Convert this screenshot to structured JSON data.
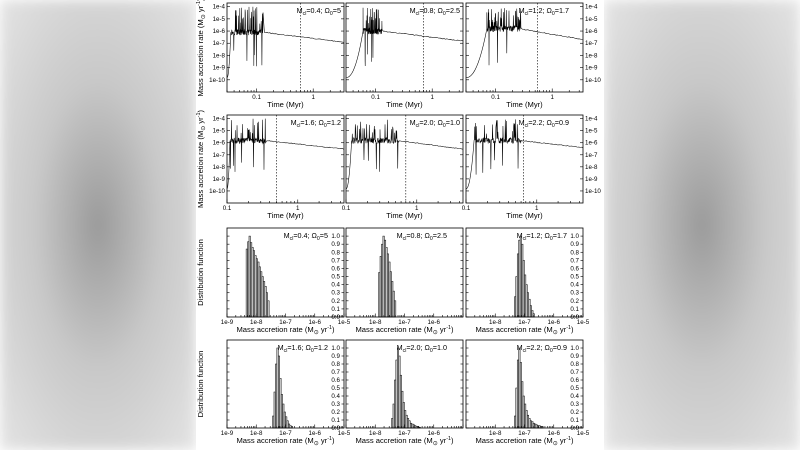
{
  "figure": {
    "colors": {
      "ink": "#000000",
      "bar_fill": "#d6d6d6",
      "background": "#ffffff"
    },
    "time_axis_label": "Time (Myr)",
    "rate_axis_label": "Mass accretion rate (M⊙ yr⁻¹)",
    "dist_axis_label": "Distribution function",
    "panel_labels": [
      "Mcl=0.4; Ω0=5",
      "Mcl=0.8; Ω0=2.5",
      "Mcl=1.2; Ω0=1.7",
      "Mcl=1.6; Ω0=1.2",
      "Mcl=2.0; Ω0=1.0",
      "Mcl=2.2; Ω0=0.9"
    ]
  },
  "chart_data": [
    {
      "type": "line",
      "panel": "time-1",
      "label": "Mcl=0.4; Ω0=5",
      "x_scale": "log",
      "y_scale": "log",
      "xlim": [
        0.03,
        3.5
      ],
      "ylim": [
        1e-11,
        0.0002
      ],
      "x_ticks": [
        "0.1",
        "1"
      ],
      "y_ticks": [
        "1e-4",
        "1e-5",
        "1e-6",
        "1e-7",
        "1e-8",
        "1e-9",
        "1e-10"
      ],
      "xlabel": "Time (Myr)",
      "ylabel": "Mass accretion rate (M⊙ yr⁻¹)",
      "t_form": 0.035,
      "t_burst_end": 0.13,
      "t_marker": 0.6,
      "level_start": 8e-07,
      "level_end": 1.2e-07,
      "burst_max": 0.0001
    },
    {
      "type": "line",
      "panel": "time-2",
      "label": "Mcl=0.8; Ω0=2.5",
      "x_scale": "log",
      "y_scale": "log",
      "xlim": [
        0.03,
        3.5
      ],
      "ylim": [
        1e-11,
        0.0002
      ],
      "x_ticks": [
        "0.1",
        "1"
      ],
      "xlabel": "Time (Myr)",
      "t_form": 0.06,
      "t_burst_end": 0.13,
      "t_marker": 0.7,
      "level_start": 1e-06,
      "level_end": 1.5e-07,
      "burst_max": 0.0001
    },
    {
      "type": "line",
      "panel": "time-3",
      "label": "Mcl=1.2; Ω0=1.7",
      "x_scale": "log",
      "y_scale": "log",
      "xlim": [
        0.03,
        3.5
      ],
      "ylim": [
        1e-11,
        0.0002
      ],
      "x_ticks": [
        "0.1",
        "1"
      ],
      "y_ticks": [
        "1e-4",
        "1e-5",
        "1e-6",
        "1e-7",
        "1e-8",
        "1e-9",
        "1e-10"
      ],
      "xlabel": "Time (Myr)",
      "t_form": 0.07,
      "t_burst_end": 0.28,
      "t_marker": 0.55,
      "level_start": 1.5e-06,
      "level_end": 2e-07,
      "burst_max": 0.0001
    },
    {
      "type": "line",
      "panel": "time-4",
      "label": "Mcl=1.6; Ω0=1.2",
      "x_scale": "log",
      "y_scale": "log",
      "xlim": [
        0.1,
        4.5
      ],
      "ylim": [
        1e-11,
        0.0002
      ],
      "x_ticks": [
        "0.1",
        "1"
      ],
      "y_ticks": [
        "1e-4",
        "1e-5",
        "1e-6",
        "1e-7",
        "1e-8",
        "1e-9",
        "1e-10"
      ],
      "xlabel": "Time (Myr)",
      "ylabel": "Mass accretion rate (M⊙ yr⁻¹)",
      "t_form": 0.11,
      "t_burst_end": 0.35,
      "t_marker": 0.5,
      "level_start": 1.5e-06,
      "level_end": 3e-07,
      "burst_max": 0.0001
    },
    {
      "type": "line",
      "panel": "time-5",
      "label": "Mcl=2.0; Ω0=1.0",
      "x_scale": "log",
      "y_scale": "log",
      "xlim": [
        0.1,
        4.5
      ],
      "ylim": [
        1e-11,
        0.0002
      ],
      "x_ticks": [
        "0.1",
        "1"
      ],
      "xlabel": "Time (Myr)",
      "t_form": 0.12,
      "t_burst_end": 0.55,
      "t_marker": 0.7,
      "level_start": 1.5e-06,
      "level_end": 3e-07,
      "burst_max": 0.0001
    },
    {
      "type": "line",
      "panel": "time-6",
      "label": "Mcl=2.2; Ω0=0.9",
      "x_scale": "log",
      "y_scale": "log",
      "xlim": [
        0.1,
        4.5
      ],
      "ylim": [
        1e-11,
        0.0002
      ],
      "x_ticks": [
        "0.1",
        "1"
      ],
      "y_ticks": [
        "1e-4",
        "1e-5",
        "1e-6",
        "1e-7",
        "1e-8",
        "1e-9",
        "1e-10"
      ],
      "xlabel": "Time (Myr)",
      "t_form": 0.13,
      "t_burst_end": 0.6,
      "t_marker": 0.65,
      "level_start": 1.5e-06,
      "level_end": 4e-07,
      "burst_max": 0.0001
    },
    {
      "type": "bar",
      "panel": "hist-1",
      "label": "Mcl=0.4; Ω0=5",
      "x_scale": "log",
      "xlim": [
        1e-09,
        1e-05
      ],
      "ylim": [
        0,
        1.1
      ],
      "x_ticks": [
        "1e-9",
        "1e-8",
        "1e-7",
        "1e-6",
        "1e-5"
      ],
      "y_ticks": [
        "0.0",
        "0.1",
        "0.2",
        "0.3",
        "0.4",
        "0.5",
        "0.6",
        "0.7",
        "0.8",
        "0.9",
        "1.0"
      ],
      "xlabel": "Mass accretion rate (M⊙ yr⁻¹)",
      "ylabel": "Distribution function",
      "bin_start": 4.5e-09,
      "bin_ratio": 1.12,
      "values": [
        0.84,
        0.93,
        1.0,
        0.92,
        0.86,
        0.82,
        0.76,
        0.72,
        0.68,
        0.62,
        0.56,
        0.5,
        0.44,
        0.38,
        0.3,
        0.2
      ]
    },
    {
      "type": "bar",
      "panel": "hist-2",
      "label": "Mcl=0.8; Ω0=2.5",
      "x_scale": "log",
      "xlim": [
        1e-09,
        1e-05
      ],
      "ylim": [
        0,
        1.1
      ],
      "x_ticks": [
        "1e-8",
        "1e-7",
        "1e-6"
      ],
      "xlabel": "Mass accretion rate (M⊙ yr⁻¹)",
      "bin_start": 1.3e-08,
      "bin_ratio": 1.12,
      "values": [
        0.55,
        0.75,
        0.9,
        1.0,
        0.95,
        0.86,
        0.78,
        0.68,
        0.56,
        0.44,
        0.32,
        0.2
      ]
    },
    {
      "type": "bar",
      "panel": "hist-3",
      "label": "Mcl=1.2; Ω0=1.7",
      "x_scale": "log",
      "xlim": [
        1e-09,
        1e-05
      ],
      "ylim": [
        0,
        1.1
      ],
      "x_ticks": [
        "1e-8",
        "1e-7",
        "1e-6",
        "1e-5"
      ],
      "y_ticks": [
        "0.0",
        "0.1",
        "0.2",
        "0.3",
        "0.4",
        "0.5",
        "0.6",
        "0.7",
        "0.8",
        "0.9",
        "1.0"
      ],
      "xlabel": "Mass accretion rate (M⊙ yr⁻¹)",
      "bin_start": 4.5e-08,
      "bin_ratio": 1.12,
      "values": [
        0.25,
        0.5,
        0.78,
        0.95,
        1.0,
        0.9,
        0.7,
        0.52,
        0.4,
        0.3,
        0.22,
        0.14,
        0.08,
        0.04
      ]
    },
    {
      "type": "bar",
      "panel": "hist-4",
      "label": "Mcl=1.6; Ω0=1.2",
      "x_scale": "log",
      "xlim": [
        1e-09,
        1e-05
      ],
      "ylim": [
        0,
        1.1
      ],
      "x_ticks": [
        "1e-9",
        "1e-8",
        "1e-7",
        "1e-6",
        "1e-5"
      ],
      "y_ticks": [
        "0.0",
        "0.1",
        "0.2",
        "0.3",
        "0.4",
        "0.5",
        "0.6",
        "0.7",
        "0.8",
        "0.9",
        "1.0"
      ],
      "xlabel": "Mass accretion rate (M⊙ yr⁻¹)",
      "ylabel": "Distribution function",
      "bin_start": 3.6e-08,
      "bin_ratio": 1.12,
      "values": [
        0.15,
        0.45,
        0.8,
        1.0,
        0.9,
        0.62,
        0.42,
        0.3,
        0.2,
        0.14,
        0.09,
        0.05,
        0.03,
        0.02
      ]
    },
    {
      "type": "bar",
      "panel": "hist-5",
      "label": "Mcl=2.0; Ω0=1.0",
      "x_scale": "log",
      "xlim": [
        1e-09,
        1e-05
      ],
      "ylim": [
        0,
        1.1
      ],
      "x_ticks": [
        "1e-8",
        "1e-7",
        "1e-6"
      ],
      "xlabel": "Mass accretion rate (M⊙ yr⁻¹)",
      "bin_start": 3.6e-08,
      "bin_ratio": 1.12,
      "values": [
        0.12,
        0.3,
        0.6,
        0.85,
        1.0,
        0.9,
        0.66,
        0.46,
        0.32,
        0.22,
        0.16,
        0.12,
        0.09,
        0.06,
        0.05,
        0.04,
        0.03,
        0.02,
        0.02,
        0.01
      ]
    },
    {
      "type": "bar",
      "panel": "hist-6",
      "label": "Mcl=2.2; Ω0=0.9",
      "x_scale": "log",
      "xlim": [
        1e-09,
        1e-05
      ],
      "ylim": [
        0,
        1.1
      ],
      "x_ticks": [
        "1e-8",
        "1e-7",
        "1e-6",
        "1e-5"
      ],
      "y_ticks": [
        "0.0",
        "0.1",
        "0.2",
        "0.3",
        "0.4",
        "0.5",
        "0.6",
        "0.7",
        "0.8",
        "0.9",
        "1.0"
      ],
      "xlabel": "Mass accretion rate (M⊙ yr⁻¹)",
      "bin_start": 4.5e-08,
      "bin_ratio": 1.12,
      "values": [
        0.15,
        0.5,
        0.85,
        1.0,
        0.82,
        0.58,
        0.4,
        0.3,
        0.22,
        0.16,
        0.12,
        0.09,
        0.08,
        0.06,
        0.05,
        0.04,
        0.03,
        0.03,
        0.02,
        0.02
      ]
    }
  ]
}
